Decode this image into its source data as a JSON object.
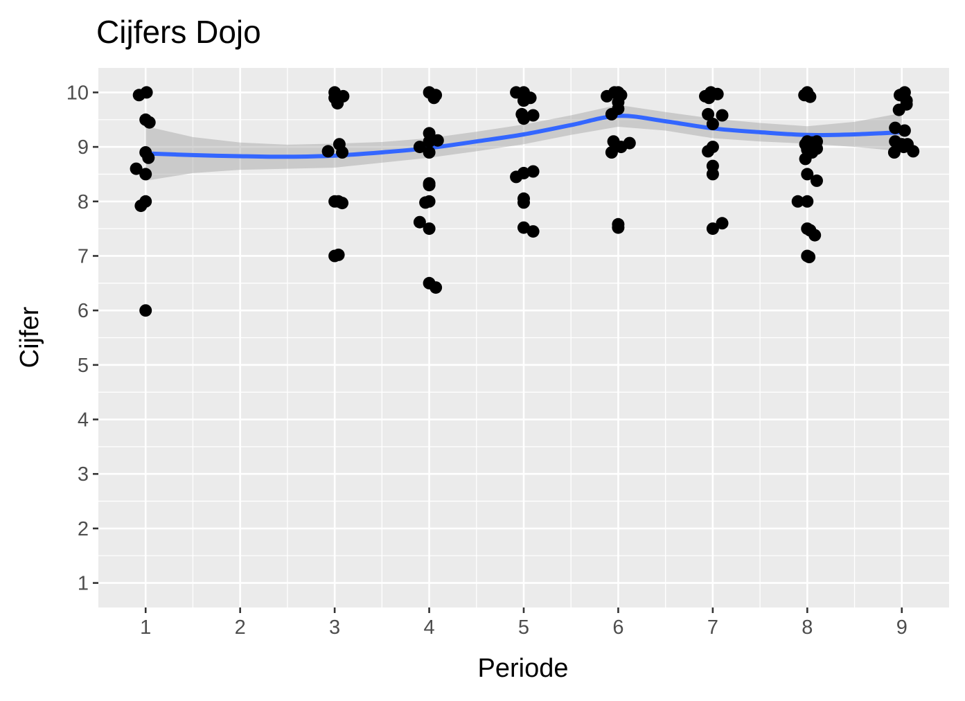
{
  "chart_data": {
    "type": "scatter",
    "title": "Cijfers Dojo",
    "xlabel": "Periode",
    "ylabel": "Cijfer",
    "xlim": [
      0.5,
      9.5
    ],
    "ylim": [
      0.55,
      10.45
    ],
    "x_ticks": [
      1,
      2,
      3,
      4,
      5,
      6,
      7,
      8,
      9
    ],
    "y_ticks": [
      1,
      2,
      3,
      4,
      5,
      6,
      7,
      8,
      9,
      10
    ],
    "grid": true,
    "background": "#ebebeb",
    "grid_color": "#ffffff",
    "point_color": "#000000",
    "smooth_color": "#3366ff",
    "band_color": "#999999",
    "points": [
      [
        0.93,
        9.95
      ],
      [
        1.01,
        10.0
      ],
      [
        1.0,
        9.5
      ],
      [
        1.04,
        9.45
      ],
      [
        1.0,
        8.9
      ],
      [
        1.03,
        8.8
      ],
      [
        0.9,
        8.6
      ],
      [
        1.0,
        8.5
      ],
      [
        0.95,
        7.92
      ],
      [
        1.0,
        8.0
      ],
      [
        1.0,
        6.0
      ],
      [
        3.0,
        10.0
      ],
      [
        3.09,
        9.93
      ],
      [
        3.03,
        9.8
      ],
      [
        3.0,
        9.9
      ],
      [
        3.05,
        9.05
      ],
      [
        2.93,
        8.92
      ],
      [
        3.08,
        8.9
      ],
      [
        3.0,
        8.0
      ],
      [
        3.08,
        7.97
      ],
      [
        3.04,
        8.0
      ],
      [
        3.0,
        7.0
      ],
      [
        3.04,
        7.02
      ],
      [
        4.0,
        10.0
      ],
      [
        4.07,
        9.95
      ],
      [
        4.05,
        9.9
      ],
      [
        4.0,
        9.25
      ],
      [
        4.09,
        9.12
      ],
      [
        3.9,
        9.0
      ],
      [
        4.0,
        9.1
      ],
      [
        4.0,
        8.9
      ],
      [
        4.0,
        8.33
      ],
      [
        4.0,
        8.3
      ],
      [
        4.0,
        8.0
      ],
      [
        3.96,
        7.98
      ],
      [
        3.9,
        7.62
      ],
      [
        4.0,
        7.5
      ],
      [
        4.0,
        6.5
      ],
      [
        4.07,
        6.42
      ],
      [
        4.92,
        10.0
      ],
      [
        5.0,
        10.0
      ],
      [
        5.07,
        9.9
      ],
      [
        5.0,
        9.85
      ],
      [
        4.98,
        9.6
      ],
      [
        5.1,
        9.58
      ],
      [
        5.0,
        9.52
      ],
      [
        5.1,
        8.55
      ],
      [
        5.0,
        8.52
      ],
      [
        4.92,
        8.45
      ],
      [
        5.0,
        8.05
      ],
      [
        5.0,
        7.98
      ],
      [
        5.0,
        7.52
      ],
      [
        5.1,
        7.45
      ],
      [
        5.88,
        9.93
      ],
      [
        5.96,
        10.0
      ],
      [
        6.0,
        10.0
      ],
      [
        6.03,
        9.95
      ],
      [
        6.0,
        9.82
      ],
      [
        6.0,
        9.7
      ],
      [
        5.93,
        9.6
      ],
      [
        5.95,
        9.1
      ],
      [
        6.12,
        9.07
      ],
      [
        6.03,
        9.0
      ],
      [
        5.93,
        8.9
      ],
      [
        6.0,
        7.58
      ],
      [
        6.0,
        7.52
      ],
      [
        6.92,
        9.93
      ],
      [
        6.98,
        10.0
      ],
      [
        7.05,
        9.97
      ],
      [
        6.96,
        9.9
      ],
      [
        6.95,
        9.6
      ],
      [
        7.1,
        9.58
      ],
      [
        7.0,
        9.42
      ],
      [
        7.0,
        9.0
      ],
      [
        6.95,
        8.92
      ],
      [
        7.0,
        8.65
      ],
      [
        7.0,
        8.5
      ],
      [
        7.1,
        7.6
      ],
      [
        7.0,
        7.5
      ],
      [
        7.97,
        9.95
      ],
      [
        8.0,
        10.0
      ],
      [
        8.03,
        9.92
      ],
      [
        8.0,
        9.1
      ],
      [
        7.98,
        9.05
      ],
      [
        8.05,
        9.08
      ],
      [
        8.1,
        9.1
      ],
      [
        8.1,
        8.97
      ],
      [
        8.0,
        8.95
      ],
      [
        8.05,
        8.9
      ],
      [
        7.98,
        8.78
      ],
      [
        8.0,
        8.5
      ],
      [
        8.1,
        8.38
      ],
      [
        7.9,
        8.0
      ],
      [
        8.0,
        8.0
      ],
      [
        8.0,
        7.5
      ],
      [
        8.03,
        7.47
      ],
      [
        8.08,
        7.38
      ],
      [
        8.0,
        7.0
      ],
      [
        8.02,
        6.98
      ],
      [
        8.98,
        9.95
      ],
      [
        9.03,
        10.0
      ],
      [
        9.05,
        9.85
      ],
      [
        9.05,
        9.78
      ],
      [
        8.97,
        9.68
      ],
      [
        8.93,
        9.35
      ],
      [
        9.03,
        9.3
      ],
      [
        8.93,
        9.1
      ],
      [
        9.0,
        9.05
      ],
      [
        9.06,
        9.05
      ],
      [
        9.02,
        9.0
      ],
      [
        9.12,
        8.92
      ],
      [
        8.92,
        8.9
      ]
    ],
    "smooth": {
      "x": [
        1,
        1.5,
        2,
        2.5,
        3,
        3.5,
        4,
        4.5,
        5,
        5.5,
        6,
        6.5,
        7,
        7.5,
        8,
        8.5,
        9
      ],
      "y": [
        8.88,
        8.85,
        8.83,
        8.82,
        8.84,
        8.9,
        8.98,
        9.1,
        9.23,
        9.4,
        9.57,
        9.47,
        9.34,
        9.27,
        9.22,
        9.23,
        9.27
      ],
      "lower": [
        8.38,
        8.52,
        8.58,
        8.6,
        8.62,
        8.71,
        8.8,
        8.92,
        9.05,
        9.22,
        9.37,
        9.3,
        9.16,
        9.1,
        9.06,
        9.0,
        8.92
      ],
      "upper": [
        9.38,
        9.18,
        9.08,
        9.04,
        9.06,
        9.09,
        9.16,
        9.28,
        9.41,
        9.58,
        9.77,
        9.64,
        9.52,
        9.44,
        9.38,
        9.46,
        9.62
      ]
    }
  }
}
